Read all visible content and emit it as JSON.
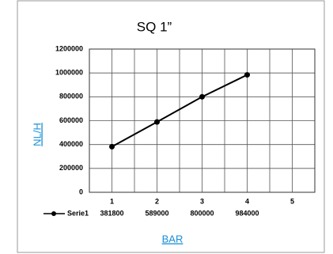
{
  "chart_data": {
    "type": "line",
    "title": "SQ 1”",
    "xlabel": "BAR",
    "ylabel": "NL/H",
    "categories": [
      "1",
      "2",
      "3",
      "4",
      "5"
    ],
    "series": [
      {
        "name": "Serie1",
        "color": "#000000",
        "values": [
          381800,
          589000,
          800000,
          984000,
          null
        ]
      }
    ],
    "ylim": [
      0,
      1200000
    ],
    "yticks": [
      0,
      200000,
      400000,
      600000,
      800000,
      1000000,
      1200000
    ],
    "grid": true
  }
}
